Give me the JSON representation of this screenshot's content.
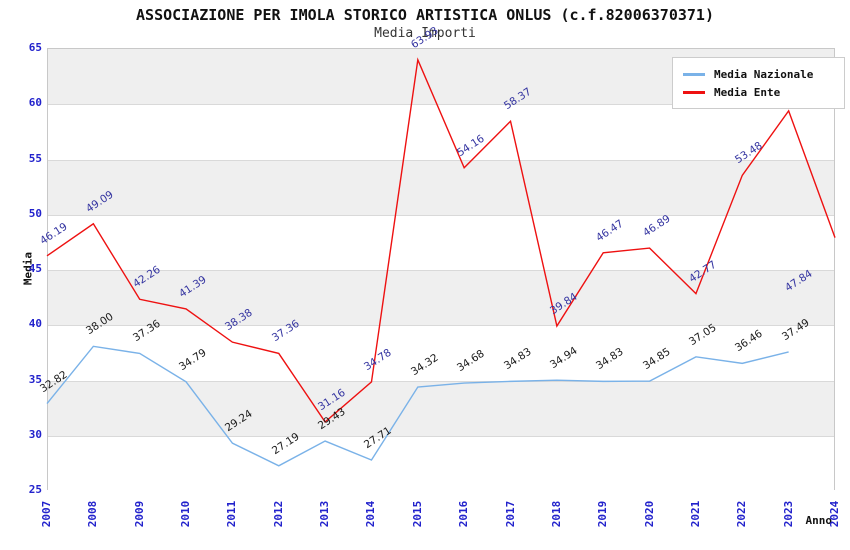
{
  "title": "ASSOCIAZIONE PER IMOLA STORICO ARTISTICA ONLUS (c.f.82006370371)",
  "subtitle": "Media Importi",
  "axes": {
    "y_label": "Media",
    "x_label": "Anno",
    "y_ticks": [
      25,
      30,
      35,
      40,
      45,
      50,
      55,
      60,
      65
    ],
    "x_ticks": [
      2007,
      2008,
      2009,
      2010,
      2011,
      2012,
      2013,
      2014,
      2015,
      2016,
      2017,
      2018,
      2019,
      2020,
      2021,
      2022,
      2023,
      2024
    ]
  },
  "legend": {
    "items": [
      {
        "label": "Media Nazionale",
        "color": "#7ab2e8"
      },
      {
        "label": "Media Ente",
        "color": "#ee1111"
      }
    ]
  },
  "colors": {
    "tick_text": "#2222cc",
    "gridline": "#d9d9d9",
    "band_gray": "#efefef",
    "plot_border": "#c8c8c8",
    "nazionale_line": "#7ab2e8",
    "nazionale_label": "#1a1a1a",
    "ente_line": "#ee1111",
    "ente_label": "#3333a0"
  },
  "chart_data": {
    "type": "line",
    "title": "ASSOCIAZIONE PER IMOLA STORICO ARTISTICA ONLUS (c.f.82006370371)",
    "subtitle": "Media Importi",
    "xlabel": "Anno",
    "ylabel": "Media",
    "ylim": [
      25,
      65
    ],
    "grid": true,
    "legend_position": "top-right",
    "x": [
      2007,
      2008,
      2009,
      2010,
      2011,
      2012,
      2013,
      2014,
      2015,
      2016,
      2017,
      2018,
      2019,
      2020,
      2021,
      2022,
      2023,
      2024
    ],
    "series": [
      {
        "name": "Media Nazionale",
        "color": "#7ab2e8",
        "label_color": "#1a1a1a",
        "values": [
          32.82,
          38.0,
          37.36,
          34.79,
          29.24,
          27.19,
          29.43,
          27.71,
          34.32,
          34.68,
          34.83,
          34.94,
          34.83,
          34.85,
          37.05,
          36.46,
          37.49,
          null
        ],
        "labels": [
          "32.82",
          "38.00",
          "37.36",
          "34.79",
          "29.24",
          "27.19",
          "29.43",
          "27.71",
          "34.32",
          "34.68",
          "34.83",
          "34.94",
          "34.83",
          "34.85",
          "37.05",
          "36.46",
          "37.49",
          null
        ]
      },
      {
        "name": "Media Ente",
        "color": "#ee1111",
        "label_color": "#3333a0",
        "values": [
          46.19,
          49.09,
          42.26,
          41.39,
          38.38,
          37.36,
          31.16,
          34.78,
          63.93,
          54.16,
          58.37,
          39.84,
          46.47,
          46.89,
          42.77,
          53.48,
          59.31,
          47.84
        ],
        "labels": [
          "46.19",
          "49.09",
          "42.26",
          "41.39",
          "38.38",
          "37.36",
          "31.16",
          "34.78",
          "63.93",
          "54.16",
          "58.37",
          "39.84",
          "46.47",
          "46.89",
          "42.77",
          "53.48",
          "59.31",
          "47.84"
        ]
      }
    ]
  }
}
